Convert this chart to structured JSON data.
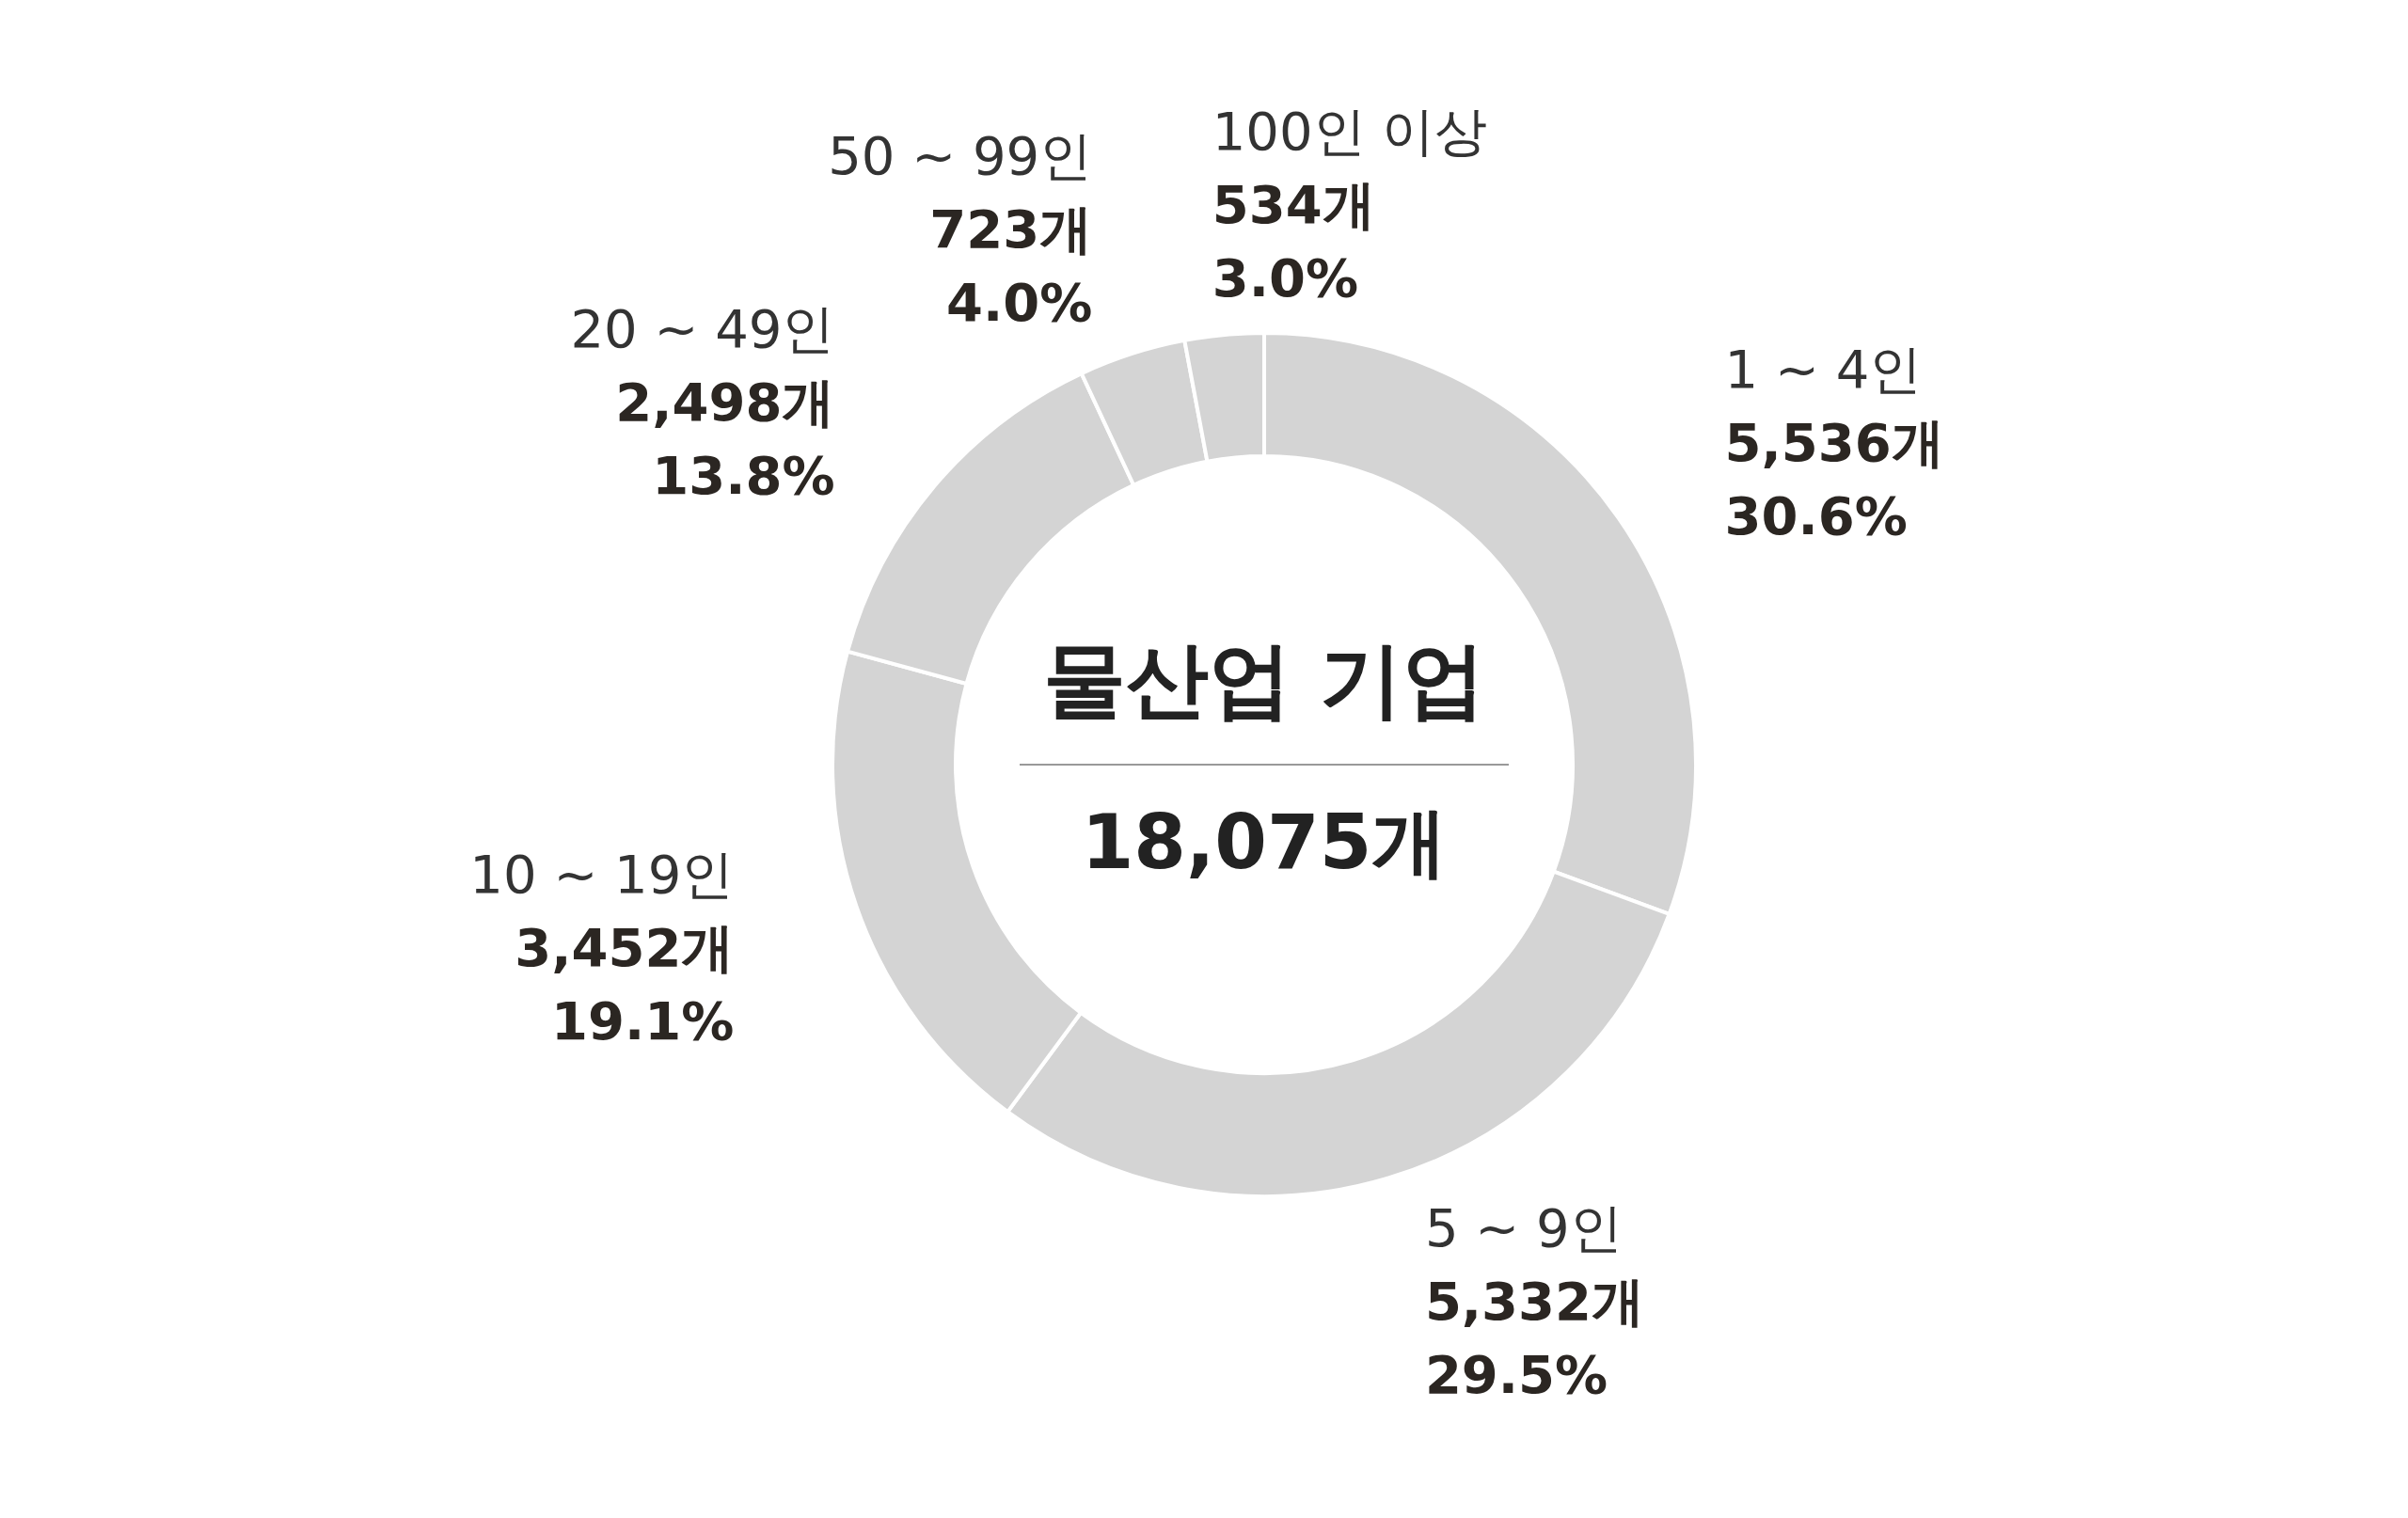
{
  "chart_data": {
    "type": "donut",
    "title": "물산업 기업",
    "subtitle": "18,075개",
    "categories": [
      "1 ~ 4인",
      "5 ~ 9인",
      "10 ~ 19인",
      "20 ~ 49인",
      "50 ~ 99인",
      "100인 이상"
    ],
    "values": [
      5536,
      5332,
      3452,
      2498,
      723,
      534
    ],
    "value_labels": [
      "5,536개\n30.6%",
      "5,332개\n29.5%",
      "3,452개\n19.1%",
      "2,498개\n13.8%",
      "723개\n4.0%",
      "534개\n3.0%"
    ],
    "colors": [
      "#d4d4d4",
      "#d4d4d4",
      "#d4d4d4",
      "#d4d4d4",
      "#d4d4d4",
      "#d4d4d4"
    ]
  }
}
